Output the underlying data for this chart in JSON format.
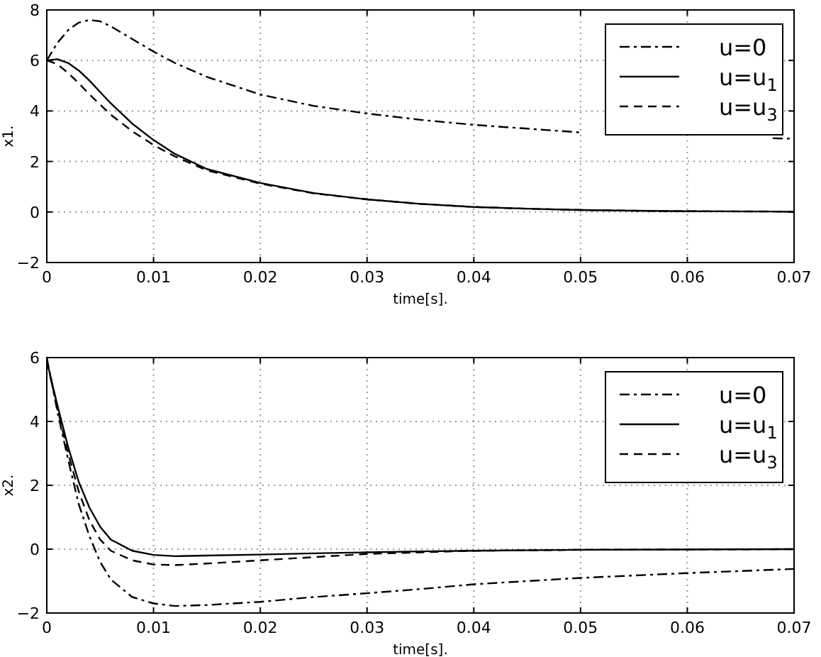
{
  "chart_data": [
    {
      "type": "line",
      "xlabel": "time[s].",
      "ylabel": "x1.",
      "xlim": [
        0,
        0.07
      ],
      "ylim": [
        -2,
        8
      ],
      "xticks": [
        0,
        0.01,
        0.02,
        0.03,
        0.04,
        0.05,
        0.06,
        0.07
      ],
      "yticks": [
        -2,
        0,
        2,
        4,
        6,
        8
      ],
      "grid": true,
      "legend": "top right",
      "x": [
        0,
        0.001,
        0.002,
        0.003,
        0.004,
        0.005,
        0.006,
        0.008,
        0.01,
        0.012,
        0.015,
        0.02,
        0.025,
        0.03,
        0.035,
        0.04,
        0.045,
        0.05,
        0.055,
        0.06,
        0.068,
        0.07
      ],
      "series": [
        {
          "name": "u=0",
          "color": "#000000",
          "line_style": "dashdot",
          "values": [
            6.0,
            6.7,
            7.2,
            7.5,
            7.6,
            7.55,
            7.35,
            6.85,
            6.35,
            5.9,
            5.35,
            4.65,
            4.2,
            3.9,
            3.65,
            3.45,
            3.3,
            3.15,
            null,
            null,
            2.92,
            2.9
          ]
        },
        {
          "name": "u=u$_{1}$",
          "color": "#000000",
          "line_style": "solid",
          "values": [
            6.0,
            6.05,
            5.9,
            5.6,
            5.2,
            4.75,
            4.3,
            3.5,
            2.85,
            2.3,
            1.7,
            1.15,
            0.75,
            0.5,
            0.32,
            0.2,
            0.13,
            0.08,
            0.05,
            0.03,
            0.02,
            0.01
          ]
        },
        {
          "name": "u=u$_{3}$",
          "color": "#000000",
          "line_style": "dashed",
          "values": [
            6.0,
            5.85,
            5.5,
            5.1,
            4.65,
            4.25,
            3.85,
            3.2,
            2.65,
            2.2,
            1.65,
            1.12,
            0.74,
            0.5,
            0.32,
            0.2,
            0.13,
            0.08,
            0.05,
            0.03,
            0.02,
            0.01
          ]
        }
      ]
    },
    {
      "type": "line",
      "xlabel": "time[s].",
      "ylabel": "x2.",
      "xlim": [
        0,
        0.07
      ],
      "ylim": [
        -2,
        6
      ],
      "xticks": [
        0,
        0.01,
        0.02,
        0.03,
        0.04,
        0.05,
        0.06,
        0.07
      ],
      "yticks": [
        -2,
        0,
        2,
        4,
        6
      ],
      "grid": true,
      "legend": "top right",
      "x": [
        0,
        0.001,
        0.002,
        0.003,
        0.004,
        0.005,
        0.006,
        0.008,
        0.01,
        0.012,
        0.015,
        0.02,
        0.025,
        0.03,
        0.035,
        0.04,
        0.05,
        0.06,
        0.07
      ],
      "series": [
        {
          "name": "u=0",
          "color": "#000000",
          "line_style": "dashdot",
          "values": [
            6.0,
            4.3,
            2.8,
            1.4,
            0.4,
            -0.4,
            -0.95,
            -1.5,
            -1.7,
            -1.78,
            -1.75,
            -1.65,
            -1.5,
            -1.38,
            -1.25,
            -1.1,
            -0.9,
            -0.75,
            -0.62
          ]
        },
        {
          "name": "u=u$_{1}$",
          "color": "#000000",
          "line_style": "solid",
          "values": [
            5.9,
            4.5,
            3.2,
            2.1,
            1.3,
            0.7,
            0.3,
            -0.05,
            -0.18,
            -0.22,
            -0.2,
            -0.17,
            -0.13,
            -0.1,
            -0.07,
            -0.05,
            -0.02,
            -0.01,
            0
          ]
        },
        {
          "name": "u=u$_{3}$",
          "color": "#000000",
          "line_style": "dashed",
          "values": [
            5.9,
            4.4,
            3.0,
            1.8,
            0.9,
            0.3,
            -0.05,
            -0.35,
            -0.48,
            -0.5,
            -0.45,
            -0.35,
            -0.25,
            -0.15,
            -0.1,
            -0.05,
            -0.02,
            -0.01,
            0
          ]
        }
      ]
    }
  ]
}
